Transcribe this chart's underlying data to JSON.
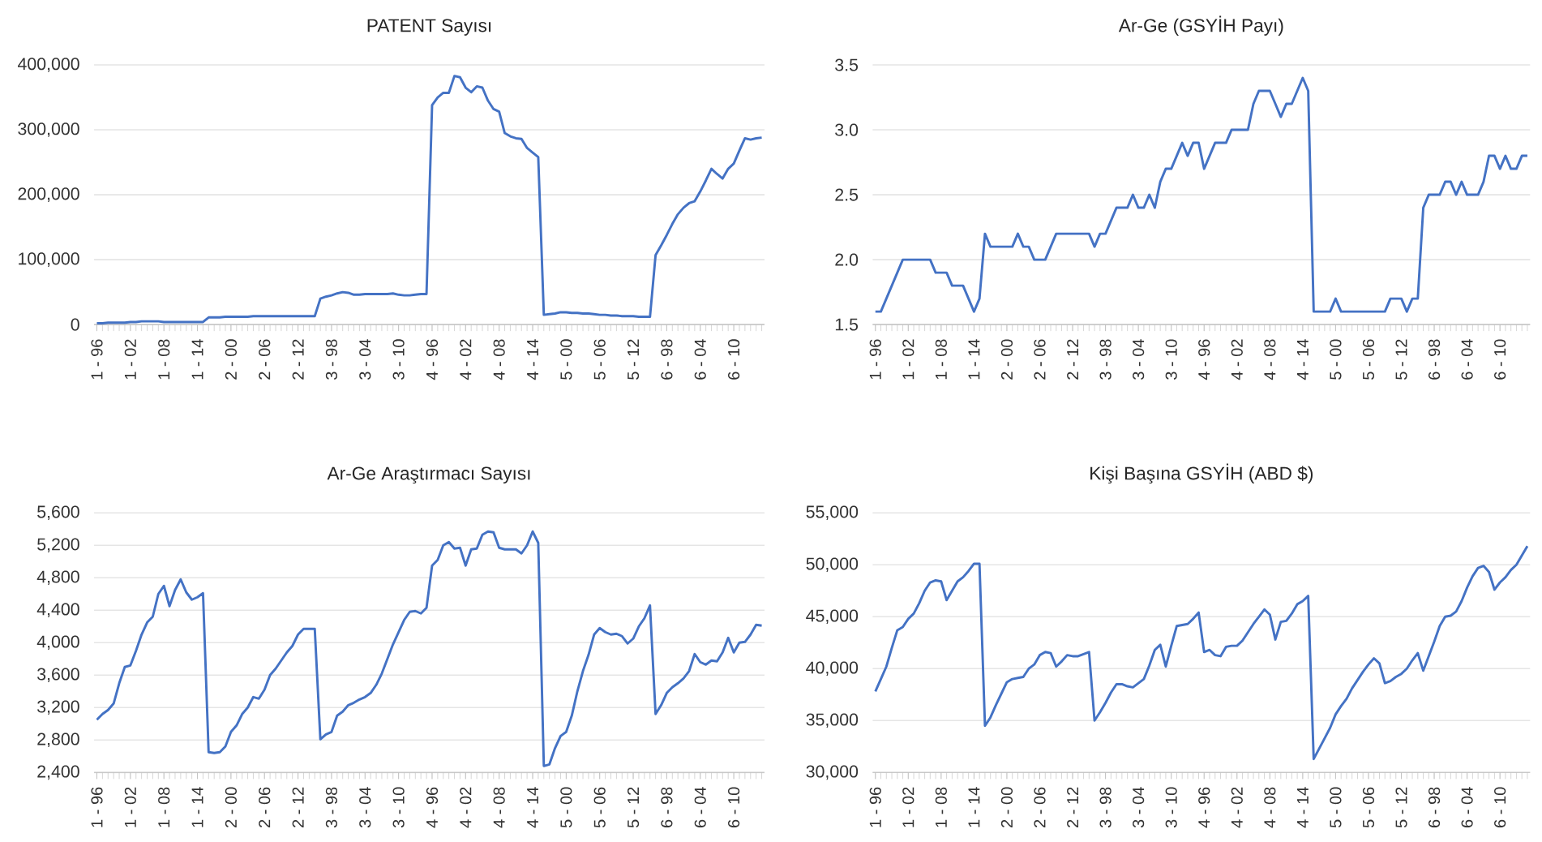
{
  "chart_data": [
    {
      "type": "line",
      "title": "PATENT Sayısı",
      "color": "#4472c4",
      "marker": "none",
      "line_style": "solid",
      "grid": "y",
      "categories": [
        "1 - 96",
        null,
        null,
        null,
        null,
        null,
        "1 - 02",
        null,
        null,
        null,
        null,
        null,
        "1 - 08",
        null,
        null,
        null,
        null,
        null,
        "1 - 14",
        null,
        null,
        null,
        null,
        null,
        "2 - 00",
        null,
        null,
        null,
        null,
        null,
        "2 - 06",
        null,
        null,
        null,
        null,
        null,
        "2 - 12",
        null,
        null,
        null,
        null,
        null,
        "3 - 98",
        null,
        null,
        null,
        null,
        null,
        "3 - 04",
        null,
        null,
        null,
        null,
        null,
        "3 - 10",
        null,
        null,
        null,
        null,
        null,
        "4 - 96",
        null,
        null,
        null,
        null,
        null,
        "4 - 02",
        null,
        null,
        null,
        null,
        null,
        "4 - 08",
        null,
        null,
        null,
        null,
        null,
        "4 - 14",
        null,
        null,
        null,
        null,
        null,
        "5 - 00",
        null,
        null,
        null,
        null,
        null,
        "5 - 06",
        null,
        null,
        null,
        null,
        null,
        "5 - 12",
        null,
        null,
        null,
        null,
        null,
        "6 - 98",
        null,
        null,
        null,
        null,
        null,
        "6 - 04",
        null,
        null,
        null,
        null,
        null,
        "6 - 10",
        null,
        null,
        null,
        null,
        null
      ],
      "values": [
        2000,
        2000,
        3000,
        3000,
        3000,
        3000,
        4000,
        4000,
        5000,
        5000,
        5000,
        5000,
        4000,
        4000,
        4000,
        4000,
        4000,
        4000,
        4000,
        4000,
        11000,
        11000,
        11000,
        12000,
        12000,
        12000,
        12000,
        12000,
        13000,
        13000,
        13000,
        13000,
        13000,
        13000,
        13000,
        13000,
        13000,
        13000,
        13000,
        13000,
        40000,
        43000,
        45000,
        48000,
        50000,
        49000,
        46000,
        46000,
        47000,
        47000,
        47000,
        47000,
        47000,
        48000,
        46000,
        45000,
        45000,
        46000,
        47000,
        47000,
        338000,
        350000,
        357000,
        357000,
        383000,
        381000,
        365000,
        358000,
        367000,
        365000,
        345000,
        332000,
        328000,
        295000,
        290000,
        287000,
        286000,
        272000,
        265000,
        258000,
        15000,
        16000,
        17000,
        19000,
        19000,
        18000,
        18000,
        17000,
        17000,
        16000,
        15000,
        15000,
        14000,
        14000,
        13000,
        13000,
        13000,
        12000,
        12000,
        12000,
        107000,
        122000,
        138000,
        155000,
        170000,
        180000,
        187000,
        190000,
        205000,
        222000,
        240000,
        232000,
        225000,
        240000,
        248000,
        268000,
        287000,
        285000,
        287000,
        288000
      ],
      "ylim": [
        0,
        400000
      ],
      "yticks": [
        0,
        {
          "value": 100000,
          "label": "100,000"
        },
        {
          "value": 200000,
          "label": "200,000"
        },
        {
          "value": 300000,
          "label": "300,000"
        },
        {
          "value": 400000,
          "label": "400,000"
        }
      ]
    },
    {
      "type": "line",
      "title": "Ar-Ge (GSYİH Payı)",
      "color": "#4472c4",
      "marker": "none",
      "line_style": "solid",
      "grid": "y",
      "categories": [
        "1 - 96",
        null,
        null,
        null,
        null,
        null,
        "1 - 02",
        null,
        null,
        null,
        null,
        null,
        "1 - 08",
        null,
        null,
        null,
        null,
        null,
        "1 - 14",
        null,
        null,
        null,
        null,
        null,
        "2 - 00",
        null,
        null,
        null,
        null,
        null,
        "2 - 06",
        null,
        null,
        null,
        null,
        null,
        "2 - 12",
        null,
        null,
        null,
        null,
        null,
        "3 - 98",
        null,
        null,
        null,
        null,
        null,
        "3 - 04",
        null,
        null,
        null,
        null,
        null,
        "3 - 10",
        null,
        null,
        null,
        null,
        null,
        "4 - 96",
        null,
        null,
        null,
        null,
        null,
        "4 - 02",
        null,
        null,
        null,
        null,
        null,
        "4 - 08",
        null,
        null,
        null,
        null,
        null,
        "4 - 14",
        null,
        null,
        null,
        null,
        null,
        "5 - 00",
        null,
        null,
        null,
        null,
        null,
        "5 - 06",
        null,
        null,
        null,
        null,
        null,
        "5 - 12",
        null,
        null,
        null,
        null,
        null,
        "6 - 98",
        null,
        null,
        null,
        null,
        null,
        "6 - 04",
        null,
        null,
        null,
        null,
        null,
        "6 - 10",
        null,
        null,
        null,
        null,
        null
      ],
      "values": [
        1.6,
        1.6,
        1.7,
        1.8,
        1.9,
        2.0,
        2.0,
        2.0,
        2.0,
        2.0,
        2.0,
        1.9,
        1.9,
        1.9,
        1.8,
        1.8,
        1.8,
        1.7,
        1.6,
        1.7,
        2.2,
        2.1,
        2.1,
        2.1,
        2.1,
        2.1,
        2.2,
        2.1,
        2.1,
        2.0,
        2.0,
        2.0,
        2.1,
        2.2,
        2.2,
        2.2,
        2.2,
        2.2,
        2.2,
        2.2,
        2.1,
        2.2,
        2.2,
        2.3,
        2.4,
        2.4,
        2.4,
        2.5,
        2.4,
        2.4,
        2.5,
        2.4,
        2.6,
        2.7,
        2.7,
        2.8,
        2.9,
        2.8,
        2.9,
        2.9,
        2.7,
        2.8,
        2.9,
        2.9,
        2.9,
        3.0,
        3.0,
        3.0,
        3.0,
        3.2,
        3.3,
        3.3,
        3.3,
        3.2,
        3.1,
        3.2,
        3.2,
        3.3,
        3.4,
        3.3,
        1.6,
        1.6,
        1.6,
        1.6,
        1.7,
        1.6,
        1.6,
        1.6,
        1.6,
        1.6,
        1.6,
        1.6,
        1.6,
        1.6,
        1.7,
        1.7,
        1.7,
        1.6,
        1.7,
        1.7,
        2.4,
        2.5,
        2.5,
        2.5,
        2.6,
        2.6,
        2.5,
        2.6,
        2.5,
        2.5,
        2.5,
        2.6,
        2.8,
        2.8,
        2.7,
        2.8,
        2.7,
        2.7,
        2.8,
        2.8
      ],
      "ylim": [
        1.5,
        3.5
      ],
      "yticks": [
        1.5,
        {
          "value": 2,
          "label": "2.0"
        },
        2.5,
        {
          "value": 3,
          "label": "3.0"
        },
        3.5
      ]
    },
    {
      "type": "line",
      "title": "Ar-Ge Araştırmacı Sayısı",
      "color": "#4472c4",
      "marker": "none",
      "line_style": "solid",
      "grid": "y",
      "categories": [
        "1 - 96",
        null,
        null,
        null,
        null,
        null,
        "1 - 02",
        null,
        null,
        null,
        null,
        null,
        "1 - 08",
        null,
        null,
        null,
        null,
        null,
        "1 - 14",
        null,
        null,
        null,
        null,
        null,
        "2 - 00",
        null,
        null,
        null,
        null,
        null,
        "2 - 06",
        null,
        null,
        null,
        null,
        null,
        "2 - 12",
        null,
        null,
        null,
        null,
        null,
        "3 - 98",
        null,
        null,
        null,
        null,
        null,
        "3 - 04",
        null,
        null,
        null,
        null,
        null,
        "3 - 10",
        null,
        null,
        null,
        null,
        null,
        "4 - 96",
        null,
        null,
        null,
        null,
        null,
        "4 - 02",
        null,
        null,
        null,
        null,
        null,
        "4 - 08",
        null,
        null,
        null,
        null,
        null,
        "4 - 14",
        null,
        null,
        null,
        null,
        null,
        "5 - 00",
        null,
        null,
        null,
        null,
        null,
        "5 - 06",
        null,
        null,
        null,
        null,
        null,
        "5 - 12",
        null,
        null,
        null,
        null,
        null,
        "6 - 98",
        null,
        null,
        null,
        null,
        null,
        "6 - 04",
        null,
        null,
        null,
        null,
        null,
        "6 - 10",
        null,
        null,
        null,
        null,
        null
      ],
      "values": [
        3050,
        3120,
        3170,
        3250,
        3500,
        3700,
        3720,
        3900,
        4100,
        4250,
        4320,
        4600,
        4700,
        4450,
        4650,
        4780,
        4620,
        4530,
        4560,
        4610,
        2650,
        2640,
        2650,
        2720,
        2900,
        2980,
        3120,
        3200,
        3330,
        3310,
        3420,
        3600,
        3680,
        3780,
        3880,
        3960,
        4100,
        4170,
        4170,
        4170,
        2810,
        2870,
        2900,
        3100,
        3150,
        3230,
        3260,
        3300,
        3330,
        3380,
        3480,
        3620,
        3800,
        3980,
        4130,
        4280,
        4380,
        4390,
        4360,
        4430,
        4950,
        5020,
        5200,
        5240,
        5160,
        5170,
        4950,
        5150,
        5160,
        5330,
        5370,
        5360,
        5170,
        5150,
        5150,
        5150,
        5100,
        5200,
        5370,
        5230,
        2480,
        2500,
        2700,
        2850,
        2900,
        3100,
        3400,
        3650,
        3850,
        4100,
        4180,
        4130,
        4100,
        4110,
        4080,
        3990,
        4050,
        4200,
        4300,
        4460,
        3120,
        3230,
        3380,
        3450,
        3500,
        3560,
        3650,
        3860,
        3760,
        3730,
        3780,
        3770,
        3880,
        4060,
        3880,
        4000,
        4010,
        4100,
        4220,
        4210
      ],
      "ylim": [
        2400,
        5600
      ],
      "yticks": [
        {
          "value": 2400,
          "label": "2,400"
        },
        {
          "value": 2800,
          "label": "2,800"
        },
        {
          "value": 3200,
          "label": "3,200"
        },
        {
          "value": 3600,
          "label": "3,600"
        },
        {
          "value": 4000,
          "label": "4,000"
        },
        {
          "value": 4400,
          "label": "4,400"
        },
        {
          "value": 4800,
          "label": "4,800"
        },
        {
          "value": 5200,
          "label": "5,200"
        },
        {
          "value": 5600,
          "label": "5,600"
        }
      ]
    },
    {
      "type": "line",
      "title": "Kişi Başına GSYİH (ABD $)",
      "color": "#4472c4",
      "marker": "none",
      "line_style": "solid",
      "grid": "y",
      "categories": [
        "1 - 96",
        null,
        null,
        null,
        null,
        null,
        "1 - 02",
        null,
        null,
        null,
        null,
        null,
        "1 - 08",
        null,
        null,
        null,
        null,
        null,
        "1 - 14",
        null,
        null,
        null,
        null,
        null,
        "2 - 00",
        null,
        null,
        null,
        null,
        null,
        "2 - 06",
        null,
        null,
        null,
        null,
        null,
        "2 - 12",
        null,
        null,
        null,
        null,
        null,
        "3 - 98",
        null,
        null,
        null,
        null,
        null,
        "3 - 04",
        null,
        null,
        null,
        null,
        null,
        "3 - 10",
        null,
        null,
        null,
        null,
        null,
        "4 - 96",
        null,
        null,
        null,
        null,
        null,
        "4 - 02",
        null,
        null,
        null,
        null,
        null,
        "4 - 08",
        null,
        null,
        null,
        null,
        null,
        "4 - 14",
        null,
        null,
        null,
        null,
        null,
        "5 - 00",
        null,
        null,
        null,
        null,
        null,
        "5 - 06",
        null,
        null,
        null,
        null,
        null,
        "5 - 12",
        null,
        null,
        null,
        null,
        null,
        "6 - 98",
        null,
        null,
        null,
        null,
        null,
        "6 - 04",
        null,
        null,
        null,
        null,
        null,
        "6 - 10",
        null,
        null,
        null,
        null,
        null
      ],
      "values": [
        37800,
        39000,
        40200,
        42000,
        43700,
        44000,
        44800,
        45300,
        46300,
        47500,
        48300,
        48500,
        48400,
        46600,
        47500,
        48400,
        48800,
        49400,
        50100,
        50100,
        34500,
        35300,
        36500,
        37600,
        38700,
        39000,
        39100,
        39200,
        40000,
        40400,
        41300,
        41600,
        41500,
        40200,
        40700,
        41300,
        41200,
        41200,
        41400,
        41600,
        35000,
        35800,
        36700,
        37700,
        38500,
        38500,
        38300,
        38200,
        38600,
        39000,
        40300,
        41800,
        42300,
        40200,
        42200,
        44100,
        44200,
        44300,
        44800,
        45400,
        41600,
        41800,
        41300,
        41200,
        42100,
        42200,
        42200,
        42700,
        43500,
        44300,
        45000,
        45700,
        45200,
        42800,
        44500,
        44600,
        45300,
        46200,
        46500,
        47000,
        31300,
        32300,
        33300,
        34300,
        35600,
        36400,
        37100,
        38100,
        38900,
        39700,
        40400,
        41000,
        40500,
        38600,
        38800,
        39200,
        39500,
        40000,
        40800,
        41500,
        39800,
        41200,
        42600,
        44100,
        45000,
        45100,
        45500,
        46500,
        47800,
        48900,
        49700,
        49900,
        49300,
        47600,
        48300,
        48800,
        49500,
        50000,
        50900,
        51800
      ],
      "ylim": [
        30000,
        55000
      ],
      "yticks": [
        {
          "value": 30000,
          "label": "30,000"
        },
        {
          "value": 35000,
          "label": "35,000"
        },
        {
          "value": 40000,
          "label": "40,000"
        },
        {
          "value": 45000,
          "label": "45,000"
        },
        {
          "value": 50000,
          "label": "50,000"
        },
        {
          "value": 55000,
          "label": "55,000"
        }
      ]
    }
  ]
}
